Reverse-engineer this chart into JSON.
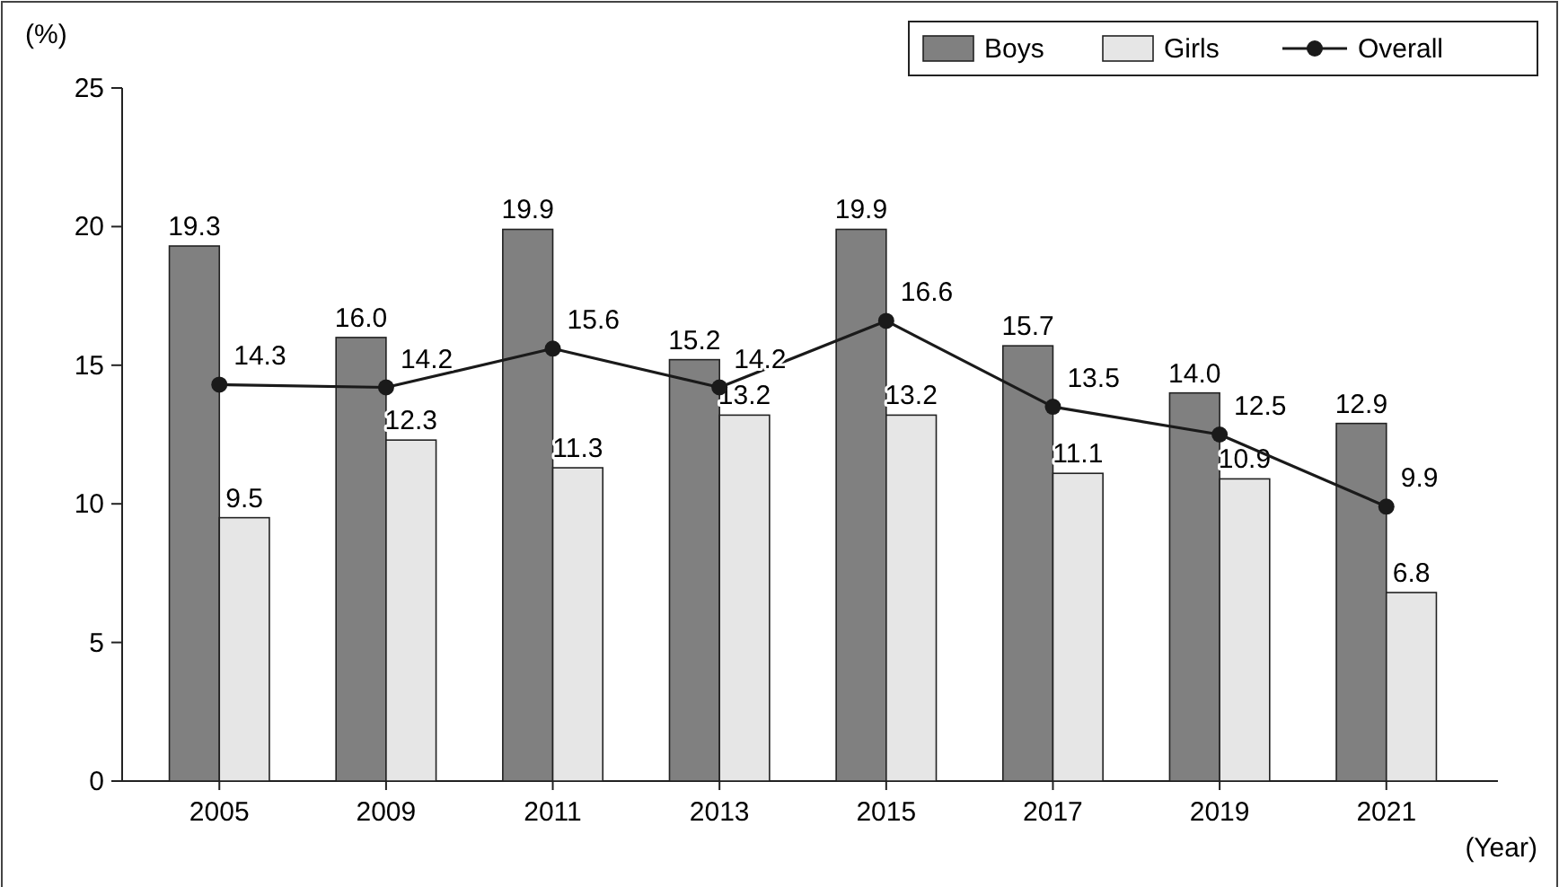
{
  "chart_data": {
    "type": "bar",
    "ylabel": "(%)",
    "xlabel": "(Year)",
    "categories": [
      "2005",
      "2009",
      "2011",
      "2013",
      "2015",
      "2017",
      "2019",
      "2021"
    ],
    "series": [
      {
        "name": "Boys",
        "color": "#808080",
        "values": [
          19.3,
          16.0,
          19.9,
          15.2,
          19.9,
          15.7,
          14.0,
          12.9
        ],
        "value_labels": [
          "19.3",
          "16.0",
          "19.9",
          "15.2",
          "19.9",
          "15.7",
          "14.0",
          "12.9"
        ]
      },
      {
        "name": "Girls",
        "color": "#e6e6e6",
        "values": [
          9.5,
          12.3,
          11.3,
          13.2,
          13.2,
          11.1,
          10.9,
          6.8
        ],
        "value_labels": [
          "9.5",
          "12.3",
          "11.3",
          "13.2",
          "13.2",
          "11.1",
          "10.9",
          "6.8"
        ]
      },
      {
        "name": "Overall",
        "type": "line",
        "color": "#1a1a1a",
        "values": [
          14.3,
          14.2,
          15.6,
          14.2,
          16.6,
          13.5,
          12.5,
          9.9
        ],
        "value_labels": [
          "14.3",
          "14.2",
          "15.6",
          "14.2",
          "16.6",
          "13.5",
          "12.5",
          "9.9"
        ]
      }
    ],
    "ylim": [
      0,
      25
    ],
    "yticks": [
      0,
      5,
      10,
      15,
      20,
      25
    ],
    "grid": false,
    "legend": "top right",
    "marker": "circle",
    "line_style": "solid"
  }
}
